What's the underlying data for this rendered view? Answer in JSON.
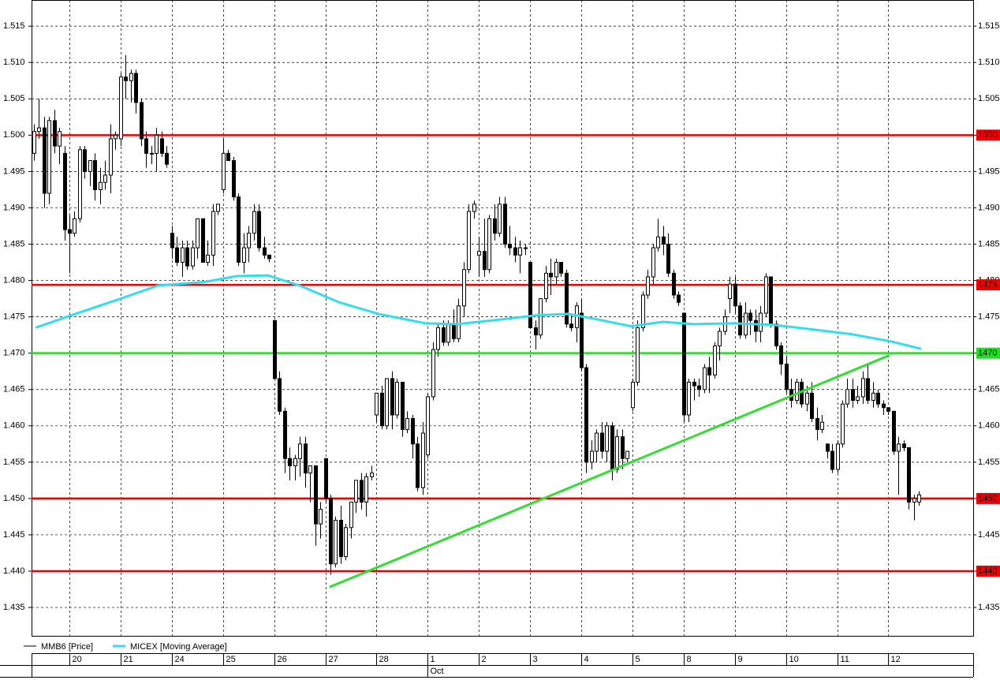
{
  "chart_data": {
    "type": "candlestick",
    "categories": [
      null,
      null,
      null,
      null,
      null,
      null,
      null,
      "20",
      null,
      null,
      null,
      null,
      null,
      null,
      null,
      null,
      null,
      "21",
      null,
      null,
      null,
      null,
      null,
      null,
      null,
      null,
      null,
      "24",
      null,
      null,
      null,
      null,
      null,
      null,
      null,
      null,
      null,
      "25",
      null,
      null,
      null,
      null,
      null,
      null,
      null,
      null,
      null,
      "26",
      null,
      null,
      null,
      null,
      null,
      null,
      null,
      null,
      null,
      "27",
      null,
      null,
      null,
      null,
      null,
      null,
      null,
      null,
      null,
      "28",
      null,
      null,
      null,
      null,
      null,
      null,
      null,
      null,
      null,
      "1",
      null,
      null,
      null,
      null,
      null,
      null,
      null,
      null,
      null,
      "2",
      null,
      null,
      null,
      null,
      null,
      null,
      null,
      null,
      null,
      "3",
      null,
      null,
      null,
      null,
      null,
      null,
      null,
      null,
      null,
      "4",
      null,
      null,
      null,
      null,
      null,
      null,
      null,
      null,
      null,
      "5",
      null,
      null,
      null,
      null,
      null,
      null,
      null,
      null,
      null,
      "8",
      null,
      null,
      null,
      null,
      null,
      null,
      null,
      null,
      null,
      "9",
      null,
      null,
      null,
      null,
      null,
      null,
      null,
      null,
      null,
      "10",
      null,
      null,
      null,
      null,
      null,
      null,
      null,
      null,
      null,
      "11",
      null,
      null,
      null,
      null,
      null,
      null,
      null,
      null,
      null,
      "12",
      null,
      null,
      null,
      null,
      null,
      null
    ],
    "month_row": [
      {
        "label": "Oct",
        "start": "1"
      }
    ],
    "series": [
      {
        "name": "MMB6 [Price]",
        "color": "#000000",
        "open": [
          1.4975,
          1.5005,
          1.501,
          1.492,
          1.502,
          1.4985,
          1.4975,
          1.487,
          1.4865,
          1.4885,
          1.498,
          1.495,
          1.4965,
          1.4925,
          1.4935,
          1.4945,
          1.4995,
          1.4995,
          1.508,
          1.5075,
          1.5085,
          1.5045,
          1.4995,
          1.4975,
          1.4975,
          1.4995,
          1.4975,
          1.4865,
          1.4845,
          1.4825,
          1.4845,
          1.482,
          1.4845,
          1.4885,
          1.4825,
          1.4835,
          1.4895,
          1.4925,
          1.4975,
          1.4965,
          1.4915,
          1.4825,
          1.4845,
          1.4865,
          1.4895,
          1.4845,
          1.4835,
          1.4745,
          1.4665,
          1.462,
          1.4555,
          1.4545,
          1.4555,
          1.4575,
          1.4535,
          1.4545,
          1.4465,
          1.4555,
          1.45,
          1.441,
          1.447,
          1.442,
          1.446,
          1.4495,
          1.4525,
          1.4495,
          1.453,
          1.4615,
          1.4645,
          1.46,
          1.4665,
          1.4615,
          1.466,
          1.4595,
          1.461,
          1.4575,
          1.4515,
          1.456,
          1.464,
          1.4705,
          1.4735,
          1.4715,
          1.474,
          1.472,
          1.4765,
          1.4815,
          1.4895,
          1.4835,
          1.484,
          1.4815,
          1.4885,
          1.4865,
          1.4905,
          1.485,
          1.4845,
          1.4835,
          1.4845,
          1.4825,
          1.4735,
          1.4725,
          1.4775,
          1.481,
          1.4805,
          1.4825,
          1.481,
          1.474,
          1.4735,
          1.4755,
          1.468,
          1.455,
          1.4565,
          1.459,
          1.4565,
          1.46,
          1.454,
          1.4585,
          1.4555,
          1.4625,
          1.466,
          1.4735,
          1.478,
          1.4805,
          1.4845,
          1.486,
          1.485,
          1.481,
          1.478,
          1.4755,
          1.4615,
          1.466,
          1.4655,
          1.465,
          1.468,
          1.467,
          1.471,
          1.473,
          1.4775,
          1.4795,
          1.4765,
          1.4725,
          1.4755,
          1.4745,
          1.473,
          1.4755,
          1.4805,
          1.474,
          1.471,
          1.4685,
          1.465,
          1.4635,
          1.466,
          1.463,
          1.4645,
          1.461,
          1.4595,
          1.4575,
          1.4565,
          1.454,
          1.4575,
          1.463,
          1.465,
          1.4635,
          1.464,
          1.4665,
          1.4635,
          1.4645,
          1.463,
          1.4625,
          1.462,
          1.4565,
          1.4575,
          1.457,
          1.4495,
          1.4495
        ],
        "high": [
          1.5015,
          1.505,
          1.5025,
          1.5025,
          1.5035,
          1.501,
          1.4985,
          1.489,
          1.4895,
          1.4985,
          1.4985,
          1.4965,
          1.4975,
          1.4955,
          1.4965,
          1.5015,
          1.5005,
          1.5085,
          1.511,
          1.509,
          1.509,
          1.505,
          1.5005,
          1.4985,
          1.501,
          1.5005,
          1.4985,
          1.4875,
          1.486,
          1.4855,
          1.4855,
          1.4855,
          1.4885,
          1.4885,
          1.4855,
          1.4905,
          1.4905,
          1.4995,
          1.498,
          1.497,
          1.492,
          1.4865,
          1.4875,
          1.4905,
          1.4905,
          1.486,
          1.4835,
          1.4745,
          1.4675,
          1.4625,
          1.457,
          1.456,
          1.4585,
          1.4585,
          1.4545,
          1.4545,
          1.4495,
          1.4555,
          1.4505,
          1.4475,
          1.449,
          1.4465,
          1.4495,
          1.4525,
          1.4535,
          1.4535,
          1.4545,
          1.4645,
          1.4655,
          1.4665,
          1.4675,
          1.4665,
          1.466,
          1.462,
          1.4615,
          1.4585,
          1.4605,
          1.4645,
          1.4715,
          1.474,
          1.4745,
          1.4745,
          1.476,
          1.4775,
          1.4825,
          1.4905,
          1.491,
          1.486,
          1.4885,
          1.489,
          1.4905,
          1.4915,
          1.4915,
          1.4875,
          1.486,
          1.4855,
          1.485,
          1.4825,
          1.4745,
          1.4775,
          1.482,
          1.483,
          1.483,
          1.4825,
          1.4815,
          1.4755,
          1.477,
          1.4775,
          1.4685,
          1.458,
          1.4595,
          1.4605,
          1.4605,
          1.4605,
          1.4595,
          1.4595,
          1.4565,
          1.4665,
          1.4745,
          1.4785,
          1.4815,
          1.485,
          1.4885,
          1.4875,
          1.4865,
          1.4815,
          1.4785,
          1.4755,
          1.4665,
          1.4665,
          1.4665,
          1.4685,
          1.4695,
          1.4715,
          1.4735,
          1.476,
          1.4805,
          1.4805,
          1.477,
          1.477,
          1.476,
          1.476,
          1.4765,
          1.481,
          1.4805,
          1.4745,
          1.4715,
          1.4695,
          1.4665,
          1.4665,
          1.4665,
          1.4655,
          1.466,
          1.4625,
          1.4615,
          1.4575,
          1.4575,
          1.458,
          1.4635,
          1.4665,
          1.4665,
          1.4655,
          1.4675,
          1.4685,
          1.466,
          1.465,
          1.4635,
          1.4625,
          1.462,
          1.4585,
          1.458,
          1.457,
          1.4505,
          1.451
        ],
        "low": [
          1.4965,
          1.4995,
          1.49,
          1.4905,
          1.4975,
          1.496,
          1.4855,
          1.481,
          1.486,
          1.488,
          1.494,
          1.493,
          1.491,
          1.4905,
          1.4925,
          1.492,
          1.498,
          1.4985,
          1.505,
          1.5045,
          1.503,
          1.4985,
          1.4955,
          1.496,
          1.495,
          1.497,
          1.4955,
          1.483,
          1.482,
          1.4805,
          1.4815,
          1.4815,
          1.483,
          1.4825,
          1.482,
          1.482,
          1.489,
          1.492,
          1.4965,
          1.491,
          1.482,
          1.481,
          1.4825,
          1.4855,
          1.484,
          1.483,
          1.4825,
          1.4665,
          1.4615,
          1.4535,
          1.4525,
          1.4525,
          1.453,
          1.4515,
          1.4495,
          1.4435,
          1.4445,
          1.4495,
          1.4395,
          1.4405,
          1.441,
          1.4415,
          1.4445,
          1.448,
          1.4485,
          1.4475,
          1.4525,
          1.4605,
          1.4595,
          1.4595,
          1.4595,
          1.461,
          1.4585,
          1.459,
          1.4555,
          1.451,
          1.4505,
          1.4555,
          1.4635,
          1.4695,
          1.471,
          1.471,
          1.4715,
          1.4715,
          1.475,
          1.481,
          1.4885,
          1.4805,
          1.4805,
          1.481,
          1.4855,
          1.486,
          1.4845,
          1.4835,
          1.4825,
          1.481,
          1.4835,
          1.4735,
          1.4705,
          1.472,
          1.477,
          1.478,
          1.4795,
          1.4805,
          1.4735,
          1.473,
          1.4715,
          1.4675,
          1.4535,
          1.454,
          1.455,
          1.4555,
          1.455,
          1.4525,
          1.4535,
          1.454,
          1.455,
          1.462,
          1.4655,
          1.473,
          1.4775,
          1.4795,
          1.484,
          1.4835,
          1.4805,
          1.4775,
          1.4765,
          1.4605,
          1.4605,
          1.4635,
          1.464,
          1.4645,
          1.4645,
          1.4665,
          1.469,
          1.4725,
          1.4755,
          1.4755,
          1.472,
          1.472,
          1.4725,
          1.4715,
          1.4715,
          1.475,
          1.4735,
          1.4705,
          1.467,
          1.4645,
          1.4625,
          1.463,
          1.4625,
          1.462,
          1.4605,
          1.458,
          1.459,
          1.4555,
          1.4535,
          1.4535,
          1.457,
          1.4625,
          1.4625,
          1.463,
          1.463,
          1.463,
          1.4625,
          1.4625,
          1.4615,
          1.4615,
          1.456,
          1.4505,
          1.4565,
          1.4485,
          1.447,
          1.449
        ],
        "close": [
          1.5005,
          1.501,
          1.492,
          1.502,
          1.4985,
          1.5005,
          1.487,
          1.4865,
          1.4885,
          1.498,
          1.495,
          1.4965,
          1.4925,
          1.4935,
          1.4945,
          1.4995,
          1.5,
          1.508,
          1.5075,
          1.5085,
          1.5045,
          1.4995,
          1.4975,
          1.4975,
          1.5,
          1.4975,
          1.496,
          1.4845,
          1.4825,
          1.4845,
          1.482,
          1.4845,
          1.4885,
          1.4825,
          1.4835,
          1.4895,
          1.4905,
          1.4975,
          1.4965,
          1.4915,
          1.4825,
          1.4845,
          1.4865,
          1.4895,
          1.4845,
          1.4835,
          1.483,
          1.4665,
          1.462,
          1.4555,
          1.4545,
          1.4555,
          1.4575,
          1.4535,
          1.4545,
          1.4465,
          1.4485,
          1.45,
          1.441,
          1.447,
          1.442,
          1.446,
          1.4495,
          1.4525,
          1.4495,
          1.453,
          1.4535,
          1.4645,
          1.46,
          1.4665,
          1.4615,
          1.466,
          1.4595,
          1.461,
          1.4575,
          1.4515,
          1.459,
          1.464,
          1.4705,
          1.4735,
          1.4715,
          1.474,
          1.472,
          1.4765,
          1.4815,
          1.4895,
          1.4905,
          1.484,
          1.4815,
          1.4885,
          1.4865,
          1.4905,
          1.485,
          1.4845,
          1.4835,
          1.4845,
          1.4845,
          1.4735,
          1.4725,
          1.4775,
          1.481,
          1.4805,
          1.4825,
          1.481,
          1.474,
          1.4735,
          1.4765,
          1.468,
          1.455,
          1.4565,
          1.459,
          1.4565,
          1.46,
          1.454,
          1.4585,
          1.4555,
          1.4565,
          1.466,
          1.4735,
          1.478,
          1.4805,
          1.4845,
          1.486,
          1.485,
          1.481,
          1.478,
          1.477,
          1.4615,
          1.466,
          1.4655,
          1.465,
          1.468,
          1.467,
          1.471,
          1.473,
          1.475,
          1.4795,
          1.4765,
          1.4725,
          1.4755,
          1.4745,
          1.473,
          1.4755,
          1.4805,
          1.474,
          1.471,
          1.4685,
          1.465,
          1.4635,
          1.466,
          1.463,
          1.4645,
          1.461,
          1.4595,
          1.4605,
          1.4565,
          1.454,
          1.4575,
          1.463,
          1.465,
          1.4635,
          1.464,
          1.4665,
          1.4635,
          1.4645,
          1.463,
          1.4625,
          1.462,
          1.4565,
          1.4575,
          1.457,
          1.4495,
          1.45,
          1.4505
        ]
      },
      {
        "name": "MICEX [Moving Average]",
        "color": "#33ddee",
        "x": [
          0.4,
          7.3,
          16.6,
          24.3,
          33.5,
          39.7,
          45.8,
          52,
          59.7,
          67.4,
          76.6,
          82.8,
          92.1,
          98.2,
          104.4,
          110.5,
          116.7,
          122.9,
          129,
          136.7,
          144.4,
          150.6,
          159.9,
          167.6,
          173.4
        ],
        "values": [
          1.4735,
          1.4752,
          1.4774,
          1.4793,
          1.4798,
          1.4806,
          1.4807,
          1.4793,
          1.477,
          1.4754,
          1.4741,
          1.474,
          1.4747,
          1.4752,
          1.4754,
          1.4746,
          1.4737,
          1.4743,
          1.474,
          1.4741,
          1.4739,
          1.4734,
          1.4726,
          1.4716,
          1.4706
        ]
      }
    ],
    "levels": [
      {
        "value": 1.5,
        "label": "1500",
        "color": "#ee0000"
      },
      {
        "value": 1.4794,
        "label": "1479",
        "color": "#ee0000"
      },
      {
        "value": 1.47,
        "label": "1470",
        "color": "#22dd22"
      },
      {
        "value": 1.45,
        "label": "1450",
        "color": "#ee0000"
      },
      {
        "value": 1.44,
        "label": "1440",
        "color": "#ee0000"
      }
    ],
    "trendlines": [
      {
        "color": "#33dd33",
        "x": [
          57.8,
          167.2
        ],
        "y": [
          1.4378,
          1.4697
        ]
      }
    ],
    "ylim": [
      1.4311,
      1.5186
    ],
    "yticks": [
      1.435,
      {
        "value": 1.44,
        "label": "1.440"
      },
      1.445,
      {
        "value": 1.45,
        "label": "1.450"
      },
      1.455,
      {
        "value": 1.46,
        "label": "1.460"
      },
      1.465,
      {
        "value": 1.47,
        "label": "1.470"
      },
      1.475,
      {
        "value": 1.48,
        "label": "1.480"
      },
      1.485,
      {
        "value": 1.49,
        "label": "1.490"
      },
      1.495,
      {
        "value": 1.5,
        "label": "1.500"
      },
      1.505,
      {
        "value": 1.51,
        "label": "1.510"
      },
      1.515
    ],
    "grid": true
  }
}
